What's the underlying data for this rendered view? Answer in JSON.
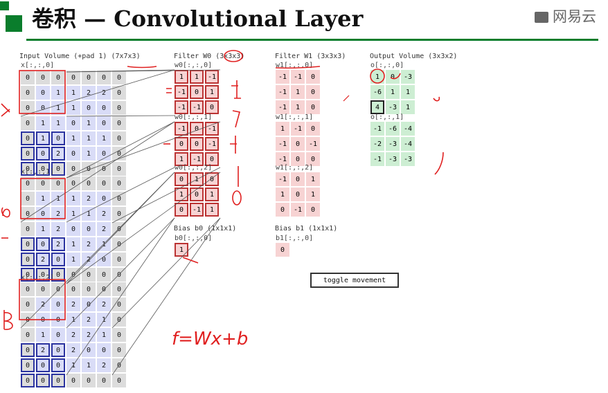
{
  "slide": {
    "title": "卷积 — Convolutional Layer",
    "brand": "网易云"
  },
  "input": {
    "label": "Input Volume (+pad 1) (7x7x3)",
    "slices": [
      {
        "label": "x[:,:,0]",
        "cells": [
          [
            0,
            0,
            0,
            0,
            0,
            0,
            0
          ],
          [
            0,
            0,
            1,
            1,
            2,
            2,
            0
          ],
          [
            0,
            0,
            1,
            1,
            0,
            0,
            0
          ],
          [
            0,
            1,
            1,
            0,
            1,
            0,
            0
          ],
          [
            0,
            1,
            0,
            1,
            1,
            1,
            0
          ],
          [
            0,
            0,
            2,
            0,
            1,
            0,
            0
          ],
          [
            0,
            0,
            0,
            0,
            0,
            0,
            0
          ]
        ]
      },
      {
        "label": "x[:,:,1]",
        "cells": [
          [
            0,
            0,
            0,
            0,
            0,
            0,
            0
          ],
          [
            0,
            1,
            1,
            1,
            2,
            0,
            0
          ],
          [
            0,
            0,
            2,
            1,
            1,
            2,
            0
          ],
          [
            0,
            1,
            2,
            0,
            0,
            2,
            0
          ],
          [
            0,
            0,
            2,
            1,
            2,
            1,
            0
          ],
          [
            0,
            2,
            0,
            1,
            2,
            0,
            0
          ],
          [
            0,
            0,
            0,
            0,
            0,
            0,
            0
          ]
        ]
      },
      {
        "label": "x[:,:,2]",
        "cells": [
          [
            0,
            0,
            0,
            0,
            0,
            0,
            0
          ],
          [
            0,
            2,
            0,
            2,
            0,
            2,
            0
          ],
          [
            0,
            0,
            0,
            1,
            2,
            1,
            0
          ],
          [
            0,
            1,
            0,
            2,
            2,
            1,
            0
          ],
          [
            0,
            2,
            0,
            2,
            0,
            0,
            0
          ],
          [
            0,
            0,
            0,
            1,
            1,
            2,
            0
          ],
          [
            0,
            0,
            0,
            0,
            0,
            0,
            0
          ]
        ]
      }
    ]
  },
  "filter0": {
    "label": "Filter W0 (3x3x3)",
    "slices": [
      {
        "label": "w0[:,:,0]",
        "cells": [
          [
            1,
            1,
            -1
          ],
          [
            -1,
            0,
            1
          ],
          [
            -1,
            -1,
            0
          ]
        ]
      },
      {
        "label": "w0[:,:,1]",
        "cells": [
          [
            -1,
            0,
            -1
          ],
          [
            0,
            0,
            -1
          ],
          [
            1,
            -1,
            0
          ]
        ]
      },
      {
        "label": "w0[:,:,2]",
        "cells": [
          [
            0,
            1,
            0
          ],
          [
            1,
            0,
            1
          ],
          [
            0,
            -1,
            1
          ]
        ]
      }
    ],
    "bias_label": "Bias b0 (1x1x1)",
    "bias_sub": "b0[:,:,0]",
    "bias": 1
  },
  "filter1": {
    "label": "Filter W1 (3x3x3)",
    "slices": [
      {
        "label": "w1[:,:,0]",
        "cells": [
          [
            -1,
            -1,
            0
          ],
          [
            -1,
            1,
            0
          ],
          [
            -1,
            1,
            0
          ]
        ]
      },
      {
        "label": "w1[:,:,1]",
        "cells": [
          [
            1,
            -1,
            0
          ],
          [
            -1,
            0,
            -1
          ],
          [
            -1,
            0,
            0
          ]
        ]
      },
      {
        "label": "w1[:,:,2]",
        "cells": [
          [
            -1,
            0,
            1
          ],
          [
            1,
            0,
            1
          ],
          [
            0,
            -1,
            0
          ]
        ]
      }
    ],
    "bias_label": "Bias b1 (1x1x1)",
    "bias_sub": "b1[:,:,0]",
    "bias": 0
  },
  "output": {
    "label": "Output Volume (3x3x2)",
    "slices": [
      {
        "label": "o[:,:,0]",
        "cells": [
          [
            1,
            0,
            -3
          ],
          [
            -6,
            1,
            1
          ],
          [
            4,
            -3,
            1
          ]
        ]
      },
      {
        "label": "o[:,:,1]",
        "cells": [
          [
            -1,
            -6,
            -4
          ],
          [
            -2,
            -3,
            -4
          ],
          [
            -1,
            -3,
            -3
          ]
        ]
      }
    ]
  },
  "controls": {
    "toggle": "toggle movement"
  },
  "annotations": {
    "formula": "f=Wx+b"
  },
  "colors": {
    "accent": "#0a7d2c",
    "input_hl": "#2b33a0",
    "filter_hl": "#b33333",
    "ink": "#e02020"
  }
}
